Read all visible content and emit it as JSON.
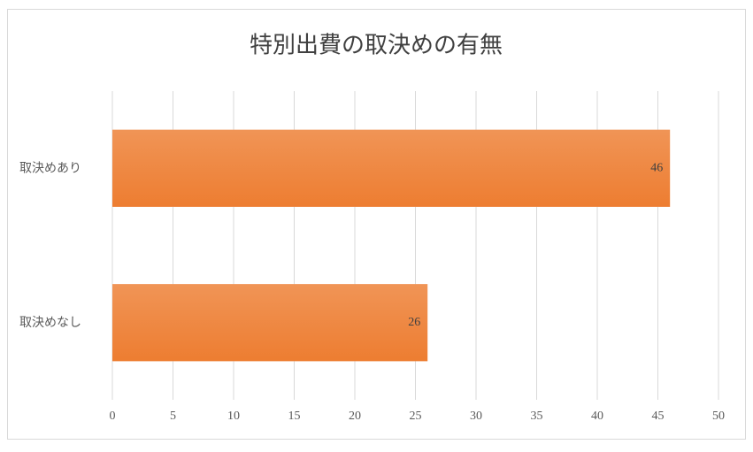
{
  "chart_data": {
    "type": "bar",
    "orientation": "horizontal",
    "title": "特別出費の取決めの有無",
    "categories": [
      "取決めあり",
      "取決めなし"
    ],
    "values": [
      46,
      26
    ],
    "color": "#ed7d31",
    "xlim": [
      0,
      50
    ],
    "xticks": [
      0,
      5,
      10,
      15,
      20,
      25,
      30,
      35,
      40,
      45,
      50
    ],
    "grid": true
  }
}
